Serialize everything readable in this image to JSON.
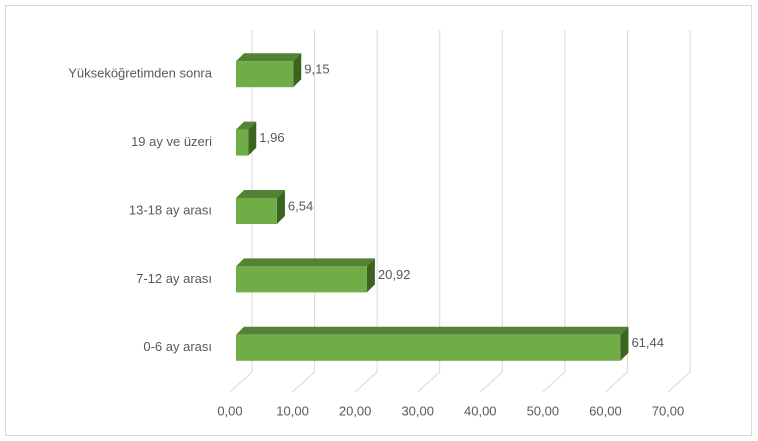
{
  "chart_data": {
    "type": "bar3d_horizontal",
    "categories": [
      "Yükseköğretimden sonra",
      "19 ay ve üzeri",
      "13-18 ay arası",
      "7-12 ay arası",
      "0-6 ay arası"
    ],
    "values": [
      9.15,
      1.96,
      6.54,
      20.92,
      61.44
    ],
    "value_labels": [
      "9,15",
      "1,96",
      "6,54",
      "20,92",
      "61,44"
    ],
    "color": "#70ad47",
    "xlim": [
      0,
      70
    ],
    "xticks": [
      {
        "value": 0,
        "label": "0,00"
      },
      {
        "value": 10,
        "label": "10,00"
      },
      {
        "value": 20,
        "label": "20,00"
      },
      {
        "value": 30,
        "label": "30,00"
      },
      {
        "value": 40,
        "label": "40,00"
      },
      {
        "value": 50,
        "label": "50,00"
      },
      {
        "value": 60,
        "label": "60,00"
      },
      {
        "value": 70,
        "label": "70,00"
      }
    ],
    "grid": true
  }
}
